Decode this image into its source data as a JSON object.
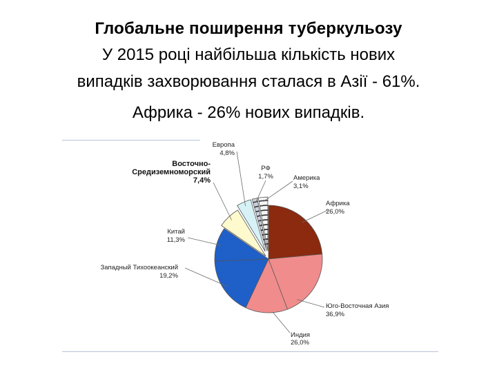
{
  "heading": {
    "title": "Глобальне поширення туберкульозу",
    "line1": "У 2015 році найбільша кількість нових",
    "line2": "випадків захворювання сталася в Азії - 61%.",
    "line3": "Африка - 26% нових випадків."
  },
  "chart_data": {
    "type": "pie",
    "title": "",
    "slices": [
      {
        "name": "Африка",
        "value_label": "26,0%",
        "value": 26.0,
        "color": "#8B2A0E"
      },
      {
        "name": "Юго-Восточная Азия",
        "value_label": "36,9%",
        "value": 36.9,
        "color": "#F08C8C"
      },
      {
        "name": "Западный Тихоокеанский",
        "value_label": "19,2%",
        "value": 19.2,
        "color": "#1F5FC8"
      },
      {
        "name": "Китай",
        "value_label": "11,3%",
        "value": 11.3,
        "color": "#1F5FC8"
      },
      {
        "name": "Восточно-Средиземноморский",
        "value_label": "7,4%",
        "value": 7.4,
        "color": "#FFFACD"
      },
      {
        "name": "Европа",
        "value_label": "4,8%",
        "value": 4.8,
        "color": "#D6F2F7"
      },
      {
        "name": "РФ",
        "value_label": "1,7%",
        "value": 1.7,
        "color": "#C8D2DC"
      },
      {
        "name": "Америка",
        "value_label": "3,1%",
        "value": 3.1,
        "color": "#F4F4F4"
      }
    ],
    "sub_slice": {
      "name": "Индия",
      "value_label": "26,0%"
    }
  }
}
